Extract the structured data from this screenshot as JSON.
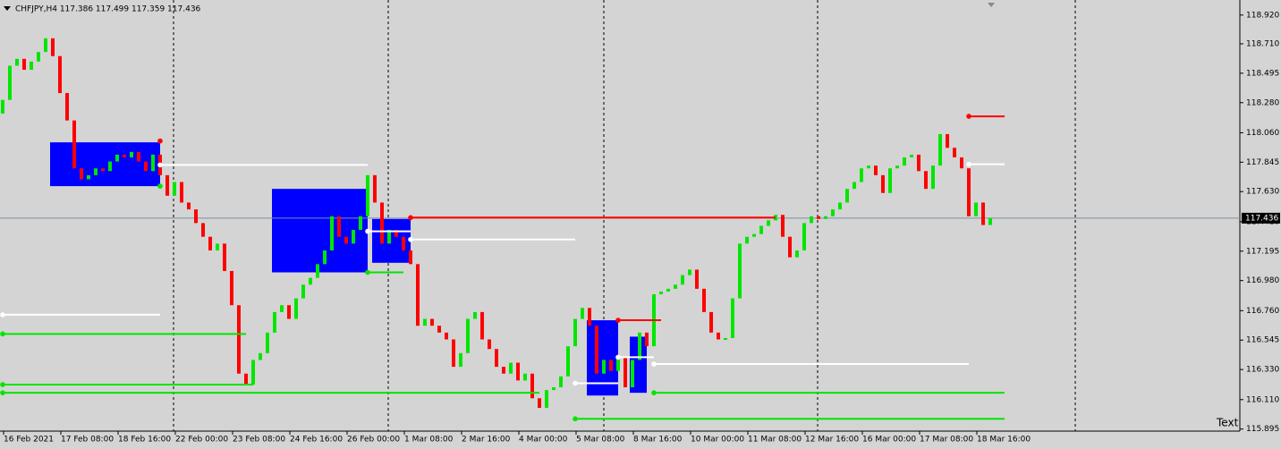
{
  "chart_data": {
    "type": "candlestick",
    "title": "CHFJPY,H4  117.386 117.499 117.359 117.436",
    "corner_text": "Text",
    "ylim": [
      115.88,
      119.03
    ],
    "yticks": [
      {
        "value": 118.92,
        "label": "118.920"
      },
      {
        "value": 118.71,
        "label": "118.710"
      },
      {
        "value": 118.495,
        "label": "118.495"
      },
      {
        "value": 118.28,
        "label": "118.280"
      },
      {
        "value": 118.06,
        "label": "118.060"
      },
      {
        "value": 117.845,
        "label": "117.845"
      },
      {
        "value": 117.63,
        "label": "117.630"
      },
      {
        "value": 117.41,
        "label": "117.410"
      },
      {
        "value": 117.195,
        "label": "117.195"
      },
      {
        "value": 116.98,
        "label": "116.980"
      },
      {
        "value": 116.76,
        "label": "116.760"
      },
      {
        "value": 116.545,
        "label": "116.545"
      },
      {
        "value": 116.33,
        "label": "116.330"
      },
      {
        "value": 116.11,
        "label": "116.110"
      },
      {
        "value": 115.895,
        "label": "115.895"
      }
    ],
    "xlabels": [
      "16 Feb 2021",
      "17 Feb 08:00",
      "18 Feb 16:00",
      "22 Feb 00:00",
      "23 Feb 08:00",
      "24 Feb 16:00",
      "26 Feb 00:00",
      "1 Mar 08:00",
      "2 Mar 16:00",
      "4 Mar 00:00",
      "5 Mar 08:00",
      "8 Mar 16:00",
      "10 Mar 00:00",
      "11 Mar 08:00",
      "12 Mar 16:00",
      "16 Mar 00:00",
      "17 Mar 08:00",
      "18 Mar 16:00"
    ],
    "up_color": "#00e600",
    "down_color": "#ff0000",
    "zone_color": "#0000ff",
    "first_open": 118.2,
    "closes": [
      118.3,
      118.55,
      118.6,
      118.52,
      118.58,
      118.65,
      118.75,
      118.62,
      118.35,
      118.15,
      117.8,
      117.72,
      117.75,
      117.8,
      117.78,
      117.85,
      117.9,
      117.88,
      117.92,
      117.85,
      117.78,
      117.9,
      117.75,
      117.6,
      117.7,
      117.55,
      117.5,
      117.4,
      117.3,
      117.2,
      117.25,
      117.05,
      116.8,
      116.3,
      116.22,
      116.4,
      116.45,
      116.6,
      116.75,
      116.8,
      116.7,
      116.85,
      116.95,
      117.0,
      117.1,
      117.2,
      117.45,
      117.3,
      117.25,
      117.35,
      117.45,
      117.75,
      117.55,
      117.25,
      117.35,
      117.3,
      117.2,
      117.1,
      116.65,
      116.7,
      116.65,
      116.6,
      116.55,
      116.35,
      116.45,
      116.7,
      116.75,
      116.55,
      116.48,
      116.35,
      116.3,
      116.38,
      116.25,
      116.3,
      116.12,
      116.05,
      116.18,
      116.2,
      116.28,
      116.5,
      116.7,
      116.78,
      116.65,
      116.3,
      116.4,
      116.32,
      116.42,
      116.2,
      116.4,
      116.6,
      116.5,
      116.88,
      116.9,
      116.92,
      116.95,
      117.02,
      117.06,
      116.92,
      116.75,
      116.6,
      116.55,
      116.56,
      116.85,
      117.25,
      117.3,
      117.32,
      117.38,
      117.42,
      117.46,
      117.3,
      117.15,
      117.2,
      117.4,
      117.45,
      117.43,
      117.45,
      117.5,
      117.55,
      117.65,
      117.7,
      117.8,
      117.82,
      117.75,
      117.62,
      117.8,
      117.82,
      117.88,
      117.9,
      117.78,
      117.65,
      117.82,
      118.05,
      117.95,
      117.88,
      117.8,
      117.45,
      117.55,
      117.386,
      117.436
    ],
    "zones": [
      {
        "from": 7,
        "to": 22,
        "top": 117.99,
        "bottom": 117.67
      },
      {
        "from": 38,
        "to": 51,
        "top": 117.65,
        "bottom": 117.04
      },
      {
        "from": 52,
        "to": 57,
        "top": 117.43,
        "bottom": 117.11
      },
      {
        "from": 82,
        "to": 86,
        "top": 116.69,
        "bottom": 116.14
      },
      {
        "from": 88,
        "to": 90,
        "top": 116.57,
        "bottom": 116.16
      }
    ],
    "levels": [
      {
        "from": 22,
        "to": 51,
        "price": 117.825,
        "color": "#ffffff"
      },
      {
        "from": 22,
        "to": 22,
        "price": 118.0,
        "color": "#ff0000"
      },
      {
        "from": 22,
        "to": 22,
        "price": 117.67,
        "color": "#00e600"
      },
      {
        "from": 0,
        "to": 22,
        "price": 116.73,
        "color": "#ffffff"
      },
      {
        "from": 0,
        "to": 34,
        "price": 116.59,
        "color": "#00e600"
      },
      {
        "from": 0,
        "to": 35,
        "price": 116.22,
        "color": "#00e600"
      },
      {
        "from": 0,
        "to": 75,
        "price": 116.16,
        "color": "#00e600"
      },
      {
        "from": 57,
        "to": 108,
        "price": 117.44,
        "color": "#ff0000"
      },
      {
        "from": 51,
        "to": 57,
        "price": 117.34,
        "color": "#ffffff"
      },
      {
        "from": 57,
        "to": 80,
        "price": 117.28,
        "color": "#ffffff"
      },
      {
        "from": 51,
        "to": 56,
        "price": 117.04,
        "color": "#00e600"
      },
      {
        "from": 86,
        "to": 92,
        "price": 116.69,
        "color": "#ff0000"
      },
      {
        "from": 86,
        "to": 91,
        "price": 116.42,
        "color": "#ffffff"
      },
      {
        "from": 91,
        "to": 135,
        "price": 116.37,
        "color": "#ffffff"
      },
      {
        "from": 80,
        "to": 86,
        "price": 116.23,
        "color": "#ffffff"
      },
      {
        "from": 91,
        "to": 140,
        "price": 116.16,
        "color": "#00e600"
      },
      {
        "from": 80,
        "to": 140,
        "price": 115.97,
        "color": "#00e600"
      },
      {
        "from": 135,
        "to": 140,
        "price": 118.18,
        "color": "#ff0000"
      },
      {
        "from": 135,
        "to": 140,
        "price": 117.83,
        "color": "#ffffff"
      }
    ]
  }
}
